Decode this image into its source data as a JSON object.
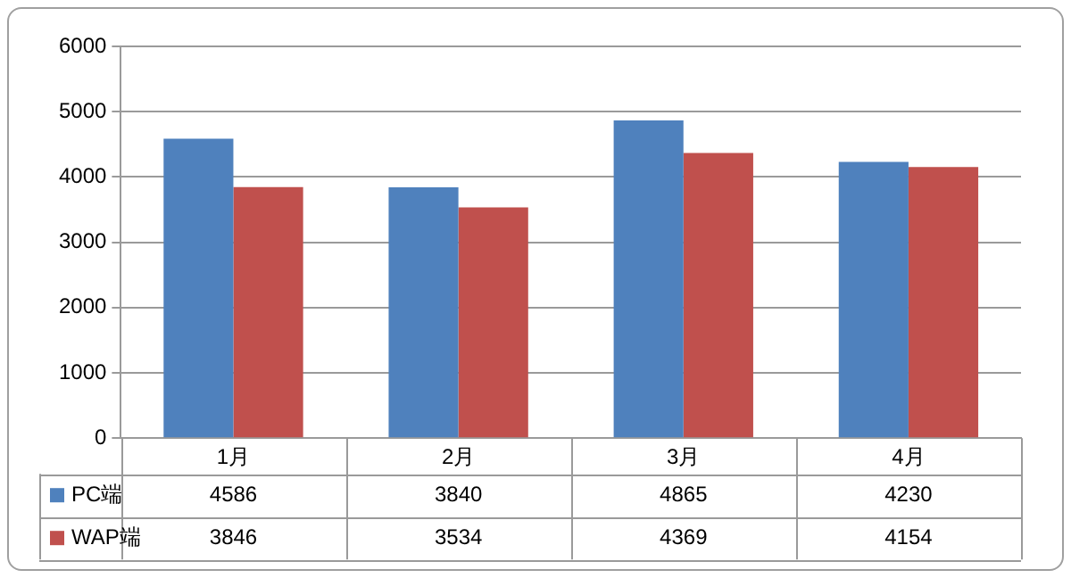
{
  "chart_data": {
    "type": "bar",
    "categories": [
      "1月",
      "2月",
      "3月",
      "4月"
    ],
    "series": [
      {
        "name": "PC端",
        "color": "#4f81bd",
        "values": [
          4586,
          3840,
          4865,
          4230
        ]
      },
      {
        "name": "WAP端",
        "color": "#c0504d",
        "values": [
          3846,
          3534,
          4369,
          4154
        ]
      }
    ],
    "ylim": [
      0,
      6000
    ],
    "yticks": [
      0,
      1000,
      2000,
      3000,
      4000,
      5000,
      6000
    ],
    "grid": "y",
    "legend": "bottom",
    "data_labels": true
  }
}
